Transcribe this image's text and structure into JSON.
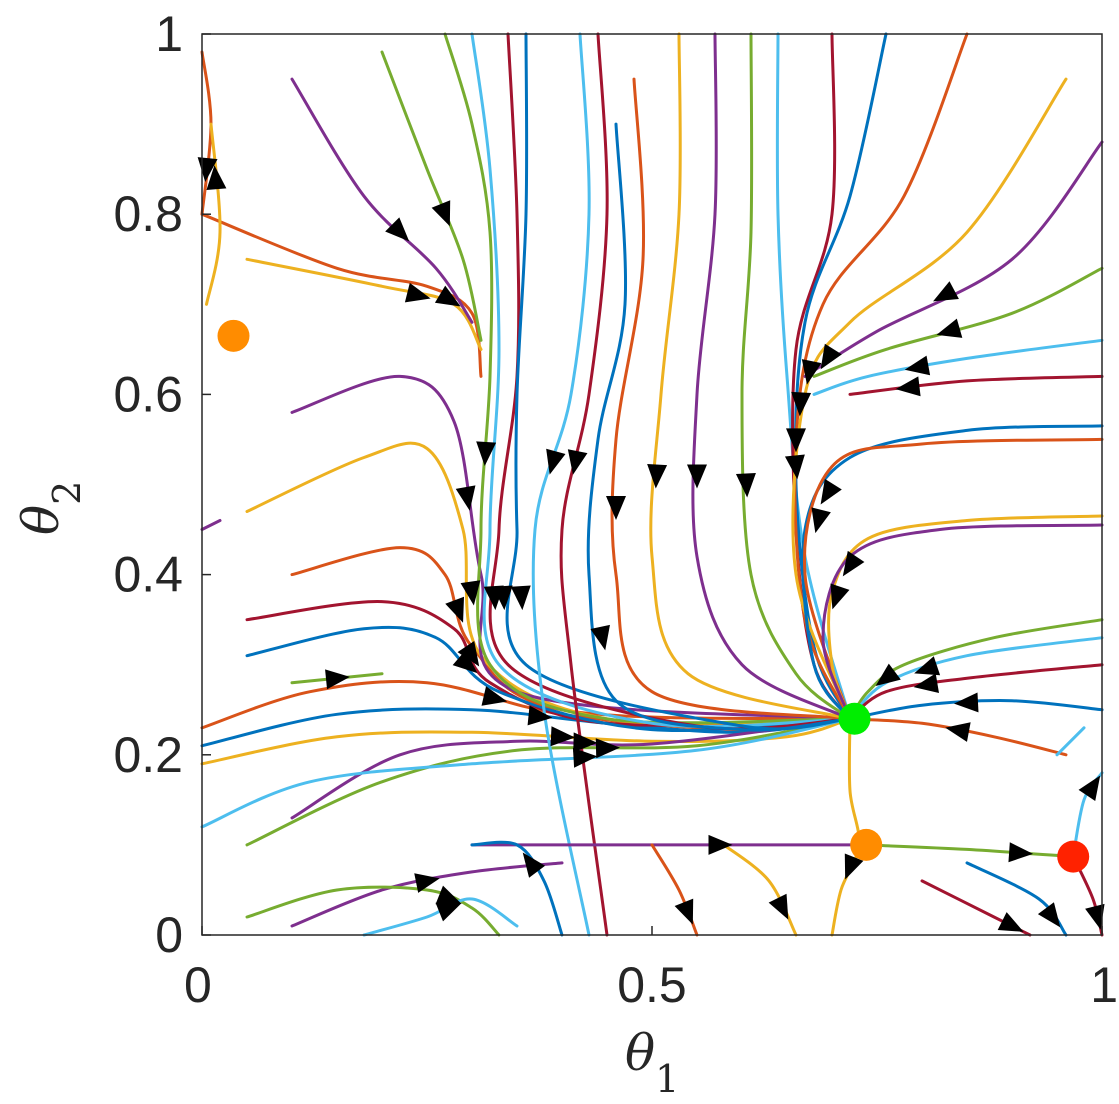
{
  "chart_data": {
    "type": "streamplot",
    "title": "",
    "xlabel": {
      "symbol": "θ",
      "subscript": "1"
    },
    "ylabel": {
      "symbol": "θ",
      "subscript": "2"
    },
    "xlim": [
      0,
      1
    ],
    "ylim": [
      0,
      1
    ],
    "x_ticks": [
      {
        "value": 0,
        "label": "0"
      },
      {
        "value": 0.5,
        "label": "0.5"
      },
      {
        "value": 1,
        "label": "1"
      }
    ],
    "y_ticks": [
      {
        "value": 0,
        "label": "0"
      },
      {
        "value": 0.2,
        "label": "0.2"
      },
      {
        "value": 0.4,
        "label": "0.4"
      },
      {
        "value": 0.6,
        "label": "0.6"
      },
      {
        "value": 0.8,
        "label": "0.8"
      },
      {
        "value": 1,
        "label": "1"
      }
    ],
    "grid": false,
    "streamline_colors": [
      "#0072BD",
      "#D95319",
      "#EDB120",
      "#7E2F8E",
      "#77AC30",
      "#4DBEEE",
      "#A2142F"
    ],
    "arrow_color": "#000000",
    "fixed_points": [
      {
        "x": 0.035,
        "y": 0.665,
        "color": "#FF8C00",
        "kind": "orange"
      },
      {
        "x": 0.725,
        "y": 0.24,
        "color": "#00EE00",
        "kind": "green"
      },
      {
        "x": 0.738,
        "y": 0.1,
        "color": "#FF8C00",
        "kind": "orange"
      },
      {
        "x": 0.968,
        "y": 0.087,
        "color": "#FF2200",
        "kind": "red"
      }
    ],
    "attractor": {
      "x": 0.725,
      "y": 0.24
    },
    "streamlines": [
      [
        [
          0.0,
          0.21
        ],
        [
          0.15,
          0.245
        ],
        [
          0.3,
          0.25
        ],
        [
          0.45,
          0.235
        ],
        [
          0.6,
          0.225
        ],
        [
          0.72,
          0.24
        ]
      ],
      [
        [
          0.0,
          0.23
        ],
        [
          0.12,
          0.27
        ],
        [
          0.25,
          0.28
        ],
        [
          0.4,
          0.245
        ],
        [
          0.6,
          0.228
        ],
        [
          0.72,
          0.24
        ]
      ],
      [
        [
          0.0,
          0.19
        ],
        [
          0.15,
          0.22
        ],
        [
          0.3,
          0.225
        ],
        [
          0.5,
          0.215
        ],
        [
          0.65,
          0.22
        ],
        [
          0.72,
          0.24
        ]
      ],
      [
        [
          0.1,
          0.13
        ],
        [
          0.22,
          0.2
        ],
        [
          0.35,
          0.215
        ],
        [
          0.5,
          0.212
        ],
        [
          0.72,
          0.24
        ]
      ],
      [
        [
          0.05,
          0.1
        ],
        [
          0.2,
          0.17
        ],
        [
          0.35,
          0.205
        ],
        [
          0.55,
          0.21
        ],
        [
          0.72,
          0.24
        ]
      ],
      [
        [
          0.0,
          0.12
        ],
        [
          0.12,
          0.17
        ],
        [
          0.3,
          0.19
        ],
        [
          0.55,
          0.205
        ],
        [
          0.72,
          0.24
        ]
      ],
      [
        [
          0.05,
          0.35
        ],
        [
          0.2,
          0.37
        ],
        [
          0.28,
          0.34
        ],
        [
          0.32,
          0.28
        ],
        [
          0.45,
          0.235
        ],
        [
          0.72,
          0.24
        ]
      ],
      [
        [
          0.05,
          0.31
        ],
        [
          0.18,
          0.34
        ],
        [
          0.26,
          0.33
        ],
        [
          0.33,
          0.27
        ],
        [
          0.5,
          0.228
        ],
        [
          0.72,
          0.24
        ]
      ],
      [
        [
          0.1,
          0.4
        ],
        [
          0.22,
          0.43
        ],
        [
          0.27,
          0.4
        ],
        [
          0.3,
          0.32
        ],
        [
          0.4,
          0.25
        ],
        [
          0.72,
          0.24
        ]
      ],
      [
        [
          0.05,
          0.47
        ],
        [
          0.18,
          0.53
        ],
        [
          0.25,
          0.54
        ],
        [
          0.29,
          0.45
        ],
        [
          0.31,
          0.31
        ],
        [
          0.45,
          0.24
        ],
        [
          0.72,
          0.24
        ]
      ],
      [
        [
          0.1,
          0.58
        ],
        [
          0.22,
          0.62
        ],
        [
          0.28,
          0.57
        ],
        [
          0.31,
          0.4
        ],
        [
          0.35,
          0.27
        ],
        [
          0.72,
          0.24
        ]
      ],
      [
        [
          0.27,
          1.0
        ],
        [
          0.3,
          0.9
        ],
        [
          0.32,
          0.78
        ],
        [
          0.32,
          0.62
        ],
        [
          0.31,
          0.45
        ],
        [
          0.32,
          0.3
        ],
        [
          0.45,
          0.24
        ],
        [
          0.72,
          0.24
        ]
      ],
      [
        [
          0.3,
          1.0
        ],
        [
          0.32,
          0.85
        ],
        [
          0.33,
          0.65
        ],
        [
          0.32,
          0.45
        ],
        [
          0.33,
          0.3
        ],
        [
          0.5,
          0.235
        ],
        [
          0.72,
          0.24
        ]
      ],
      [
        [
          0.34,
          1.0
        ],
        [
          0.35,
          0.8
        ],
        [
          0.35,
          0.62
        ],
        [
          0.33,
          0.45
        ],
        [
          0.34,
          0.3
        ],
        [
          0.55,
          0.232
        ],
        [
          0.72,
          0.24
        ]
      ],
      [
        [
          0.36,
          1.0
        ],
        [
          0.36,
          0.8
        ],
        [
          0.35,
          0.6
        ],
        [
          0.35,
          0.45
        ],
        [
          0.36,
          0.3
        ],
        [
          0.6,
          0.232
        ],
        [
          0.72,
          0.24
        ]
      ],
      [
        [
          0.0,
          0.8
        ],
        [
          0.15,
          0.74
        ],
        [
          0.25,
          0.72
        ],
        [
          0.3,
          0.69
        ],
        [
          0.31,
          0.62
        ]
      ],
      [
        [
          0.05,
          0.75
        ],
        [
          0.2,
          0.72
        ],
        [
          0.28,
          0.7
        ],
        [
          0.31,
          0.65
        ]
      ],
      [
        [
          0.1,
          0.95
        ],
        [
          0.18,
          0.82
        ],
        [
          0.26,
          0.74
        ],
        [
          0.3,
          0.68
        ]
      ],
      [
        [
          0.2,
          0.98
        ],
        [
          0.25,
          0.85
        ],
        [
          0.29,
          0.75
        ],
        [
          0.31,
          0.66
        ]
      ],
      [
        [
          0.42,
          1.0
        ],
        [
          0.43,
          0.8
        ],
        [
          0.41,
          0.6
        ],
        [
          0.37,
          0.45
        ],
        [
          0.38,
          0.25
        ],
        [
          0.43,
          0.0
        ]
      ],
      [
        [
          0.44,
          1.0
        ],
        [
          0.45,
          0.8
        ],
        [
          0.43,
          0.6
        ],
        [
          0.4,
          0.45
        ],
        [
          0.41,
          0.3
        ],
        [
          0.45,
          0.0
        ]
      ],
      [
        [
          0.46,
          0.9
        ],
        [
          0.47,
          0.7
        ],
        [
          0.44,
          0.55
        ],
        [
          0.43,
          0.4
        ],
        [
          0.46,
          0.26
        ],
        [
          0.6,
          0.228
        ],
        [
          0.72,
          0.24
        ]
      ],
      [
        [
          0.48,
          0.95
        ],
        [
          0.49,
          0.75
        ],
        [
          0.46,
          0.55
        ],
        [
          0.46,
          0.4
        ],
        [
          0.5,
          0.27
        ],
        [
          0.72,
          0.24
        ]
      ],
      [
        [
          0.53,
          1.0
        ],
        [
          0.53,
          0.8
        ],
        [
          0.51,
          0.6
        ],
        [
          0.5,
          0.42
        ],
        [
          0.54,
          0.29
        ],
        [
          0.72,
          0.24
        ]
      ],
      [
        [
          0.57,
          1.0
        ],
        [
          0.57,
          0.8
        ],
        [
          0.55,
          0.6
        ],
        [
          0.55,
          0.42
        ],
        [
          0.6,
          0.3
        ],
        [
          0.72,
          0.24
        ]
      ],
      [
        [
          0.61,
          1.0
        ],
        [
          0.61,
          0.78
        ],
        [
          0.6,
          0.6
        ],
        [
          0.61,
          0.4
        ],
        [
          0.66,
          0.29
        ],
        [
          0.72,
          0.24
        ]
      ],
      [
        [
          0.64,
          1.0
        ],
        [
          0.64,
          0.8
        ],
        [
          0.65,
          0.62
        ],
        [
          0.67,
          0.42
        ],
        [
          0.72,
          0.24
        ]
      ],
      [
        [
          0.7,
          1.0
        ],
        [
          0.7,
          0.8
        ],
        [
          0.66,
          0.65
        ],
        [
          0.66,
          0.45
        ],
        [
          0.68,
          0.3
        ],
        [
          0.72,
          0.24
        ]
      ],
      [
        [
          0.76,
          1.0
        ],
        [
          0.72,
          0.82
        ],
        [
          0.67,
          0.68
        ],
        [
          0.66,
          0.5
        ],
        [
          0.68,
          0.32
        ],
        [
          0.72,
          0.24
        ]
      ],
      [
        [
          0.85,
          1.0
        ],
        [
          0.78,
          0.82
        ],
        [
          0.69,
          0.7
        ],
        [
          0.66,
          0.55
        ],
        [
          0.67,
          0.35
        ],
        [
          0.72,
          0.24
        ]
      ],
      [
        [
          0.96,
          0.95
        ],
        [
          0.85,
          0.78
        ],
        [
          0.72,
          0.68
        ],
        [
          0.67,
          0.6
        ],
        [
          0.66,
          0.4
        ],
        [
          0.72,
          0.24
        ]
      ],
      [
        [
          1.0,
          0.88
        ],
        [
          0.9,
          0.75
        ],
        [
          0.75,
          0.67
        ],
        [
          0.67,
          0.62
        ]
      ],
      [
        [
          1.0,
          0.74
        ],
        [
          0.9,
          0.69
        ],
        [
          0.76,
          0.65
        ],
        [
          0.68,
          0.62
        ]
      ],
      [
        [
          1.0,
          0.66
        ],
        [
          0.85,
          0.64
        ],
        [
          0.74,
          0.62
        ],
        [
          0.68,
          0.6
        ]
      ],
      [
        [
          1.0,
          0.62
        ],
        [
          0.85,
          0.615
        ],
        [
          0.72,
          0.6
        ]
      ],
      [
        [
          1.0,
          0.565
        ],
        [
          0.85,
          0.56
        ],
        [
          0.72,
          0.53
        ],
        [
          0.67,
          0.45
        ],
        [
          0.68,
          0.3
        ],
        [
          0.72,
          0.24
        ]
      ],
      [
        [
          1.0,
          0.55
        ],
        [
          0.8,
          0.545
        ],
        [
          0.7,
          0.52
        ],
        [
          0.67,
          0.4
        ],
        [
          0.72,
          0.24
        ]
      ],
      [
        [
          1.0,
          0.465
        ],
        [
          0.85,
          0.46
        ],
        [
          0.74,
          0.44
        ],
        [
          0.7,
          0.38
        ],
        [
          0.7,
          0.3
        ],
        [
          0.72,
          0.24
        ]
      ],
      [
        [
          1.0,
          0.455
        ],
        [
          0.82,
          0.45
        ],
        [
          0.72,
          0.42
        ],
        [
          0.69,
          0.33
        ],
        [
          0.72,
          0.24
        ]
      ],
      [
        [
          1.0,
          0.35
        ],
        [
          0.88,
          0.33
        ],
        [
          0.78,
          0.3
        ],
        [
          0.74,
          0.27
        ],
        [
          0.72,
          0.24
        ]
      ],
      [
        [
          1.0,
          0.33
        ],
        [
          0.85,
          0.31
        ],
        [
          0.76,
          0.28
        ],
        [
          0.72,
          0.24
        ]
      ],
      [
        [
          1.0,
          0.3
        ],
        [
          0.85,
          0.285
        ],
        [
          0.76,
          0.27
        ],
        [
          0.72,
          0.24
        ]
      ],
      [
        [
          1.0,
          0.25
        ],
        [
          0.9,
          0.26
        ],
        [
          0.8,
          0.255
        ],
        [
          0.72,
          0.24
        ]
      ],
      [
        [
          0.96,
          0.2
        ],
        [
          0.88,
          0.22
        ],
        [
          0.8,
          0.235
        ],
        [
          0.72,
          0.24
        ]
      ],
      [
        [
          0.72,
          0.24
        ],
        [
          0.72,
          0.16
        ],
        [
          0.73,
          0.1
        ],
        [
          0.71,
          0.05
        ],
        [
          0.7,
          0.0
        ]
      ],
      [
        [
          0.3,
          0.1
        ],
        [
          0.5,
          0.1
        ],
        [
          0.65,
          0.1
        ],
        [
          0.738,
          0.1
        ]
      ],
      [
        [
          0.738,
          0.1
        ],
        [
          0.85,
          0.095
        ],
        [
          0.968,
          0.087
        ]
      ],
      [
        [
          0.968,
          0.087
        ],
        [
          0.98,
          0.15
        ],
        [
          1.0,
          0.18
        ]
      ],
      [
        [
          0.968,
          0.087
        ],
        [
          0.99,
          0.04
        ],
        [
          1.0,
          0.0
        ]
      ],
      [
        [
          0.4,
          0.0
        ],
        [
          0.38,
          0.06
        ],
        [
          0.35,
          0.1
        ],
        [
          0.3,
          0.1
        ]
      ],
      [
        [
          0.5,
          0.1
        ],
        [
          0.53,
          0.05
        ],
        [
          0.55,
          0.0
        ]
      ],
      [
        [
          0.58,
          0.1
        ],
        [
          0.63,
          0.06
        ],
        [
          0.66,
          0.0
        ]
      ],
      [
        [
          0.1,
          0.01
        ],
        [
          0.2,
          0.05
        ],
        [
          0.3,
          0.07
        ],
        [
          0.4,
          0.08
        ]
      ],
      [
        [
          0.05,
          0.02
        ],
        [
          0.15,
          0.05
        ],
        [
          0.25,
          0.05
        ],
        [
          0.3,
          0.03
        ],
        [
          0.33,
          0.0
        ]
      ],
      [
        [
          0.18,
          0.0
        ],
        [
          0.25,
          0.02
        ],
        [
          0.3,
          0.04
        ],
        [
          0.35,
          0.01
        ]
      ],
      [
        [
          0.8,
          0.06
        ],
        [
          0.88,
          0.02
        ],
        [
          0.92,
          0.0
        ]
      ],
      [
        [
          0.85,
          0.08
        ],
        [
          0.93,
          0.04
        ],
        [
          0.96,
          0.0
        ]
      ],
      [
        [
          0.0,
          0.98
        ],
        [
          0.01,
          0.9
        ],
        [
          0.0,
          0.8
        ]
      ],
      [
        [
          0.005,
          0.7
        ],
        [
          0.02,
          0.78
        ],
        [
          0.01,
          0.9
        ]
      ],
      [
        [
          0.0,
          0.45
        ],
        [
          0.02,
          0.46
        ]
      ],
      [
        [
          0.1,
          0.28
        ],
        [
          0.2,
          0.29
        ]
      ],
      [
        [
          0.95,
          0.2
        ],
        [
          0.98,
          0.23
        ]
      ]
    ]
  }
}
